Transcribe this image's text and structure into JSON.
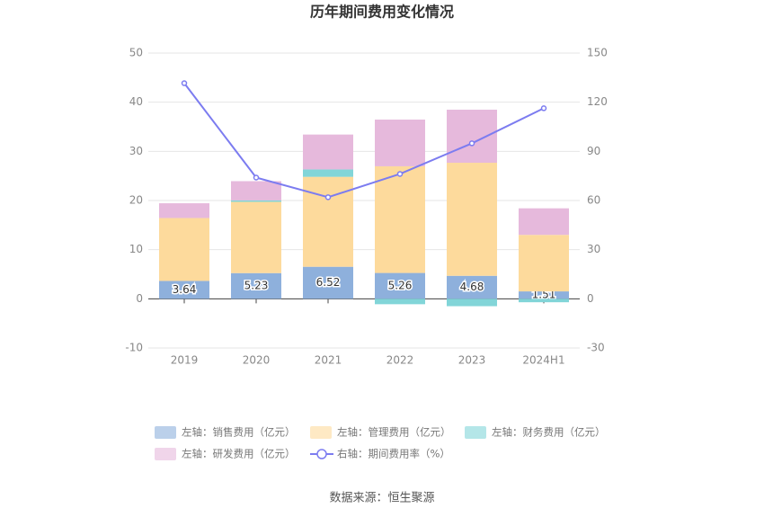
{
  "chart_data": {
    "type": "bar",
    "title": "历年期间费用变化情况",
    "categories": [
      "2019",
      "2020",
      "2021",
      "2022",
      "2023",
      "2024H1"
    ],
    "series": [
      {
        "name": "左轴：销售费用（亿元）",
        "color": "#8eb0dc",
        "values": [
          3.64,
          5.23,
          6.52,
          5.26,
          4.68,
          1.51
        ]
      },
      {
        "name": "左轴：管理费用（亿元）",
        "color": "#fdda9c",
        "values": [
          12.8,
          14.5,
          18.3,
          21.7,
          23.0,
          11.5
        ]
      },
      {
        "name": "左轴：财务费用（亿元）",
        "color": "#82d5d8",
        "values": [
          0,
          0.3,
          1.5,
          -1.1,
          -1.5,
          -0.7
        ]
      },
      {
        "name": "左轴：研发费用（亿元）",
        "color": "#e6b9dc",
        "values": [
          3.0,
          3.9,
          7.1,
          9.5,
          10.8,
          5.4
        ]
      },
      {
        "name": "右轴：期间费用率（%）",
        "color": "#7c7cf0",
        "type": "line",
        "axis": "y2",
        "values": [
          131.6,
          74.0,
          62.0,
          76.2,
          94.9,
          116.3
        ]
      }
    ],
    "ylim": [
      -10,
      50
    ],
    "yticks": [
      -10,
      0,
      10,
      20,
      30,
      40,
      50
    ],
    "y2lim": [
      -30,
      150
    ],
    "y2ticks": [
      -30,
      0,
      30,
      60,
      90,
      120,
      150
    ],
    "grid": true,
    "legend": "bottom",
    "source": "数据来源：恒生聚源"
  }
}
